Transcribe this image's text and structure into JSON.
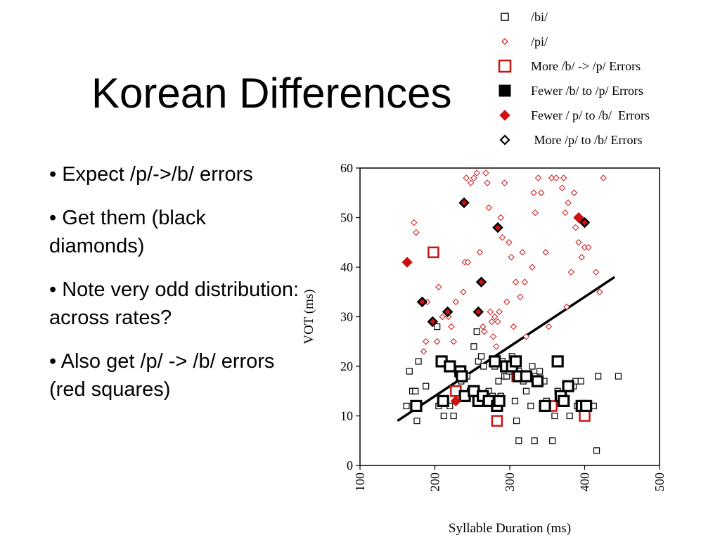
{
  "slide": {
    "title": "Korean Differences",
    "bullets": [
      "• Expect /p/->/b/ errors",
      "• Get them (black diamonds)",
      "• Note very odd distribution: across rates?",
      "• Also get /p/ -> /b/ errors (red squares)"
    ]
  },
  "chart_data": {
    "type": "scatter",
    "xlabel": "Syllable Duration (ms)",
    "ylabel": "VOT (ms)",
    "xlim": [
      100,
      500
    ],
    "ylim": [
      0,
      60
    ],
    "x_ticks": [
      "100",
      "200",
      "300",
      "400",
      "500"
    ],
    "y_ticks": [
      "0",
      "10",
      "20",
      "30",
      "40",
      "50",
      "60"
    ],
    "legend_position": "top-right, outside plot",
    "colors": {
      "black": "#000000",
      "red": "#cc1111"
    },
    "series": [
      {
        "name": "/bi/",
        "marker": "open-square-small",
        "color": "#000000",
        "points": [
          [
            162,
            12
          ],
          [
            166,
            19
          ],
          [
            170,
            15
          ],
          [
            174,
            15
          ],
          [
            178,
            21
          ],
          [
            176,
            9
          ],
          [
            188,
            16
          ],
          [
            203,
            28
          ],
          [
            205,
            12
          ],
          [
            212,
            10
          ],
          [
            220,
            12
          ],
          [
            225,
            10
          ],
          [
            230,
            19
          ],
          [
            235,
            17
          ],
          [
            243,
            18
          ],
          [
            247,
            15
          ],
          [
            252,
            24
          ],
          [
            256,
            27
          ],
          [
            258,
            21
          ],
          [
            262,
            22
          ],
          [
            265,
            20
          ],
          [
            272,
            15
          ],
          [
            274,
            13
          ],
          [
            277,
            14
          ],
          [
            280,
            20
          ],
          [
            285,
            17
          ],
          [
            288,
            14
          ],
          [
            290,
            21
          ],
          [
            293,
            18
          ],
          [
            296,
            18
          ],
          [
            299,
            19
          ],
          [
            303,
            22
          ],
          [
            307,
            13
          ],
          [
            312,
            19
          ],
          [
            309,
            9
          ],
          [
            312,
            5
          ],
          [
            315,
            18
          ],
          [
            318,
            17
          ],
          [
            322,
            15
          ],
          [
            328,
            12
          ],
          [
            330,
            20
          ],
          [
            334,
            18
          ],
          [
            340,
            19
          ],
          [
            346,
            17
          ],
          [
            349,
            13
          ],
          [
            352,
            12
          ],
          [
            355,
            12
          ],
          [
            357,
            5
          ],
          [
            360,
            10
          ],
          [
            364,
            15
          ],
          [
            368,
            13
          ],
          [
            372,
            14
          ],
          [
            380,
            10
          ],
          [
            385,
            16
          ],
          [
            388,
            17
          ],
          [
            390,
            12
          ],
          [
            395,
            17
          ],
          [
            398,
            12
          ],
          [
            410,
            12
          ],
          [
            412,
            12
          ],
          [
            418,
            18
          ],
          [
            416,
            3
          ],
          [
            445,
            18
          ],
          [
            333,
            5
          ]
        ]
      },
      {
        "name": "/pi/",
        "marker": "open-diamond-small",
        "color": "#cc1111",
        "points": [
          [
            172,
            49
          ],
          [
            175,
            47
          ],
          [
            185,
            23
          ],
          [
            188,
            25
          ],
          [
            190,
            33
          ],
          [
            196,
            29
          ],
          [
            203,
            25
          ],
          [
            205,
            36
          ],
          [
            210,
            30
          ],
          [
            218,
            30
          ],
          [
            222,
            28
          ],
          [
            225,
            25
          ],
          [
            228,
            33
          ],
          [
            238,
            35
          ],
          [
            240,
            41
          ],
          [
            242,
            58
          ],
          [
            244,
            41
          ],
          [
            248,
            57
          ],
          [
            252,
            58
          ],
          [
            256,
            59
          ],
          [
            260,
            43
          ],
          [
            262,
            37
          ],
          [
            264,
            28
          ],
          [
            266,
            27
          ],
          [
            268,
            59
          ],
          [
            270,
            57
          ],
          [
            272,
            52
          ],
          [
            274,
            31
          ],
          [
            276,
            29
          ],
          [
            278,
            26
          ],
          [
            280,
            30
          ],
          [
            282,
            24
          ],
          [
            284,
            29
          ],
          [
            286,
            31
          ],
          [
            288,
            50
          ],
          [
            290,
            46
          ],
          [
            293,
            57
          ],
          [
            296,
            33
          ],
          [
            299,
            45
          ],
          [
            302,
            42
          ],
          [
            305,
            28
          ],
          [
            308,
            37
          ],
          [
            311,
            18
          ],
          [
            314,
            34
          ],
          [
            317,
            43
          ],
          [
            320,
            37
          ],
          [
            322,
            26
          ],
          [
            330,
            40
          ],
          [
            332,
            55
          ],
          [
            334,
            51
          ],
          [
            338,
            58
          ],
          [
            342,
            55
          ],
          [
            348,
            43
          ],
          [
            352,
            28
          ],
          [
            356,
            58
          ],
          [
            362,
            58
          ],
          [
            370,
            56
          ],
          [
            372,
            58
          ],
          [
            374,
            51
          ],
          [
            376,
            32
          ],
          [
            378,
            53
          ],
          [
            382,
            39
          ],
          [
            386,
            55
          ],
          [
            388,
            48
          ],
          [
            392,
            45
          ],
          [
            396,
            42
          ],
          [
            400,
            44
          ],
          [
            405,
            44
          ],
          [
            415,
            39
          ],
          [
            420,
            35
          ],
          [
            425,
            58
          ]
        ]
      },
      {
        "name": "More /b/ -> /p/ Errors",
        "marker": "open-square-large",
        "color": "#cc1111",
        "points": [
          [
            198,
            43
          ],
          [
            228,
            15
          ],
          [
            283,
            9
          ],
          [
            348,
            12
          ],
          [
            356,
            12
          ],
          [
            400,
            10
          ],
          [
            310,
            18
          ]
        ]
      },
      {
        "name": "Fewer /b/ to /p/ Errors",
        "marker": "open-square-large-bold",
        "color": "#000000",
        "points": [
          [
            175,
            12
          ],
          [
            209,
            21
          ],
          [
            211,
            13
          ],
          [
            220,
            20
          ],
          [
            234,
            19
          ],
          [
            236,
            18
          ],
          [
            240,
            14
          ],
          [
            252,
            15
          ],
          [
            258,
            13
          ],
          [
            264,
            14
          ],
          [
            272,
            13
          ],
          [
            280,
            21
          ],
          [
            283,
            12
          ],
          [
            286,
            13
          ],
          [
            295,
            20
          ],
          [
            303,
            20
          ],
          [
            308,
            21
          ],
          [
            312,
            18
          ],
          [
            322,
            18
          ],
          [
            337,
            17
          ],
          [
            347,
            12
          ],
          [
            364,
            21
          ],
          [
            368,
            14
          ],
          [
            372,
            13
          ],
          [
            378,
            16
          ],
          [
            396,
            12
          ],
          [
            402,
            12
          ]
        ]
      },
      {
        "name": "Fewer / p/ to /b/  Errors",
        "marker": "filled-diamond",
        "color": "#cc1111",
        "points": [
          [
            163,
            41
          ],
          [
            392,
            50
          ],
          [
            228,
            13
          ]
        ]
      },
      {
        "name": " More /p/ to /b/ Errors",
        "marker": "open-diamond-bold",
        "color": "#000000",
        "points": [
          [
            183,
            33
          ],
          [
            197,
            29
          ],
          [
            217,
            31
          ],
          [
            239,
            53
          ],
          [
            258,
            31
          ],
          [
            262,
            37
          ],
          [
            284,
            48
          ],
          [
            400,
            49
          ]
        ]
      }
    ],
    "trendline": {
      "x": [
        150,
        440
      ],
      "y": [
        9,
        38
      ]
    }
  }
}
